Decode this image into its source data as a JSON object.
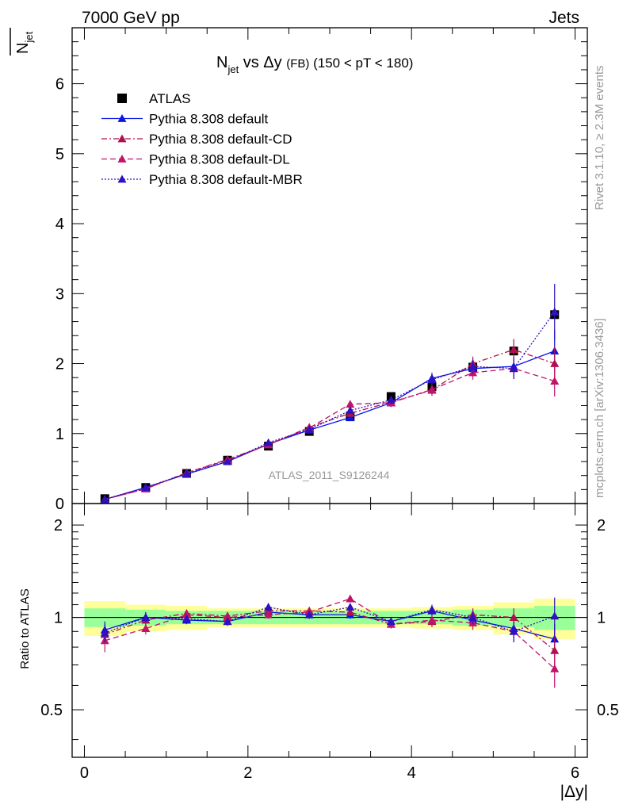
{
  "header": {
    "left": "7000 GeV pp",
    "right": "Jets"
  },
  "side_labels": {
    "rivet": "Rivet 3.1.10, ≥ 2.3M events",
    "mcplots": "mcplots.cern.ch [arXiv:1306.3436]"
  },
  "chart_data": [
    {
      "type": "scatter",
      "title_main": "N",
      "title_sub": "jet",
      "title_rest": " vs Δy ",
      "title_small": "(FB)",
      "title_tail": " (150 < pT < 180)",
      "ylabel_main": "N",
      "ylabel_sub": "jet",
      "watermark": "ATLAS_2011_S9126244",
      "xlim": [
        -0.15,
        6.15
      ],
      "ylim": [
        0,
        6.8
      ],
      "yticks": [
        0,
        1,
        2,
        3,
        4,
        5,
        6
      ],
      "yticklabels": [
        "0",
        "1",
        "2",
        "3",
        "4",
        "5",
        "6"
      ],
      "x": [
        0.25,
        0.75,
        1.25,
        1.75,
        2.25,
        2.75,
        3.25,
        3.75,
        4.25,
        4.75,
        5.25,
        5.75
      ],
      "series": [
        {
          "name": "ATLAS",
          "color": "#000000",
          "marker": "square",
          "line": "none",
          "values": [
            0.07,
            0.23,
            0.43,
            0.62,
            0.82,
            1.03,
            1.24,
            1.53,
            1.67,
            1.95,
            2.18,
            2.7
          ]
        },
        {
          "name": "Pythia 8.308 default",
          "color": "#0a14e6",
          "marker": "triangle",
          "line": "solid",
          "values": [
            0.06,
            0.23,
            0.42,
            0.6,
            0.85,
            1.05,
            1.23,
            1.44,
            1.79,
            1.93,
            1.96,
            2.18
          ],
          "errors": [
            0.02,
            0.02,
            0.02,
            0.03,
            0.03,
            0.04,
            0.05,
            0.06,
            0.08,
            0.1,
            0.14,
            0.3
          ]
        },
        {
          "name": "Pythia 8.308 default-CD",
          "color": "#b0104e",
          "marker": "triangle",
          "line": "dashdot",
          "values": [
            0.06,
            0.21,
            0.44,
            0.63,
            0.84,
            1.09,
            1.29,
            1.45,
            1.62,
            2.0,
            2.2,
            2.0
          ],
          "errors": [
            0.02,
            0.02,
            0.02,
            0.03,
            0.03,
            0.04,
            0.05,
            0.06,
            0.08,
            0.1,
            0.15,
            0.25
          ]
        },
        {
          "name": "Pythia 8.308 default-DL",
          "color": "#c0146a",
          "marker": "triangle",
          "line": "dashed",
          "values": [
            0.06,
            0.21,
            0.44,
            0.62,
            0.84,
            1.08,
            1.42,
            1.44,
            1.63,
            1.87,
            1.93,
            1.75
          ],
          "errors": [
            0.02,
            0.02,
            0.02,
            0.03,
            0.03,
            0.04,
            0.05,
            0.06,
            0.08,
            0.1,
            0.15,
            0.22
          ]
        },
        {
          "name": "Pythia 8.308 default-MBR",
          "color": "#3010c0",
          "marker": "triangle",
          "line": "dotted",
          "values": [
            0.06,
            0.23,
            0.43,
            0.6,
            0.87,
            1.06,
            1.33,
            1.48,
            1.77,
            1.96,
            1.93,
            2.74
          ],
          "errors": [
            0.02,
            0.02,
            0.02,
            0.03,
            0.03,
            0.04,
            0.05,
            0.06,
            0.08,
            0.1,
            0.15,
            0.4
          ]
        }
      ]
    },
    {
      "type": "scatter",
      "ylabel": "Ratio to ATLAS",
      "xlabel": "|Δy|",
      "xlim": [
        -0.15,
        6.15
      ],
      "ylim": [
        0.35,
        2.35
      ],
      "xticks": [
        0,
        2,
        4,
        6
      ],
      "xticklabels": [
        "0",
        "2",
        "4",
        "6"
      ],
      "yticks": [
        0.5,
        1,
        2
      ],
      "yticklabels": [
        "0.5",
        "1",
        "2"
      ],
      "bands": {
        "green_half_width": [
          0.07,
          0.06,
          0.05,
          0.05,
          0.05,
          0.05,
          0.05,
          0.05,
          0.05,
          0.06,
          0.07,
          0.09
        ],
        "yellow_half_width": [
          0.13,
          0.1,
          0.09,
          0.07,
          0.07,
          0.07,
          0.07,
          0.07,
          0.08,
          0.09,
          0.12,
          0.15
        ]
      },
      "x": [
        0.25,
        0.75,
        1.25,
        1.75,
        2.25,
        2.75,
        3.25,
        3.75,
        4.25,
        4.75,
        5.25,
        5.75
      ],
      "series": [
        {
          "name": "Pythia 8.308 default",
          "color": "#0a14e6",
          "line": "solid",
          "values": [
            0.91,
            1.0,
            0.98,
            0.97,
            1.04,
            1.02,
            1.02,
            0.97,
            1.05,
            0.98,
            0.92,
            0.85
          ],
          "errors": [
            0.06,
            0.04,
            0.03,
            0.03,
            0.03,
            0.03,
            0.03,
            0.03,
            0.04,
            0.05,
            0.06,
            0.1
          ]
        },
        {
          "name": "Pythia 8.308 default-CD",
          "color": "#b0104e",
          "line": "dashdot",
          "values": [
            0.88,
            0.98,
            1.03,
            1.01,
            1.05,
            1.05,
            1.04,
            0.95,
            0.97,
            1.02,
            1.0,
            0.78
          ],
          "errors": [
            0.06,
            0.04,
            0.03,
            0.03,
            0.03,
            0.03,
            0.03,
            0.03,
            0.04,
            0.05,
            0.07,
            0.1
          ]
        },
        {
          "name": "Pythia 8.308 default-DL",
          "color": "#c0146a",
          "line": "dashed",
          "values": [
            0.84,
            0.92,
            1.02,
            1.0,
            1.02,
            1.04,
            1.15,
            0.95,
            0.98,
            0.96,
            0.9,
            0.68
          ],
          "errors": [
            0.07,
            0.04,
            0.03,
            0.03,
            0.03,
            0.03,
            0.03,
            0.03,
            0.04,
            0.05,
            0.07,
            0.09
          ]
        },
        {
          "name": "Pythia 8.308 default-MBR",
          "color": "#3010c0",
          "line": "dotted",
          "values": [
            0.89,
            1.0,
            0.99,
            0.97,
            1.08,
            1.02,
            1.08,
            0.97,
            1.06,
            1.0,
            0.9,
            1.01
          ],
          "errors": [
            0.06,
            0.04,
            0.03,
            0.03,
            0.03,
            0.03,
            0.03,
            0.03,
            0.04,
            0.05,
            0.07,
            0.15
          ]
        }
      ]
    }
  ]
}
